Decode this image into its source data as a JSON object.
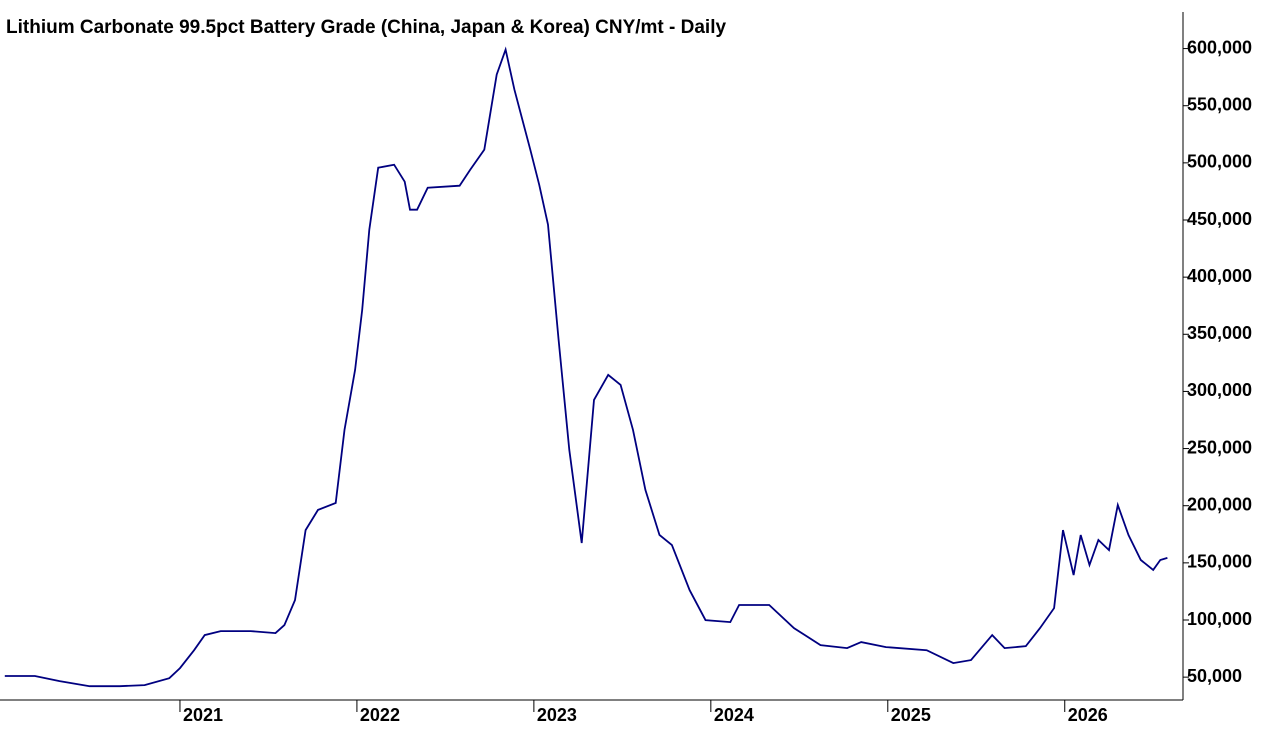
{
  "chart_data": {
    "type": "line",
    "title": "Lithium Carbonate 99.5pct Battery Grade (China, Japan & Korea) CNY/mt - Daily",
    "x": [
      2020.01,
      2020.18,
      2020.32,
      2020.49,
      2020.66,
      2020.8,
      2020.94,
      2021.0,
      2021.08,
      2021.14,
      2021.23,
      2021.4,
      2021.54,
      2021.59,
      2021.65,
      2021.71,
      2021.78,
      2021.88,
      2021.93,
      2021.99,
      2022.03,
      2022.07,
      2022.12,
      2022.21,
      2022.27,
      2022.3,
      2022.34,
      2022.4,
      2022.58,
      2022.64,
      2022.72,
      2022.79,
      2022.84,
      2022.89,
      2022.98,
      2023.03,
      2023.08,
      2023.14,
      2023.2,
      2023.27,
      2023.34,
      2023.42,
      2023.49,
      2023.56,
      2023.63,
      2023.71,
      2023.78,
      2023.88,
      2023.97,
      2024.11,
      2024.16,
      2024.33,
      2024.47,
      2024.62,
      2024.77,
      2024.85,
      2024.99,
      2025.22,
      2025.37,
      2025.47,
      2025.59,
      2025.66,
      2025.78,
      2025.86,
      2025.94,
      2025.99,
      2026.05,
      2026.09,
      2026.14,
      2026.19,
      2026.25,
      2026.3,
      2026.36,
      2026.43,
      2026.5,
      2026.54,
      2026.58
    ],
    "series": [
      {
        "color": "#000080",
        "values": [
          51000,
          51000,
          46500,
          42100,
          42100,
          43000,
          49100,
          57900,
          73600,
          86800,
          90300,
          90300,
          88500,
          95500,
          117400,
          178700,
          196300,
          202400,
          266300,
          318900,
          371400,
          441500,
          495800,
          498400,
          483500,
          459000,
          459000,
          478300,
          480000,
          494000,
          511500,
          577200,
          599100,
          564100,
          511500,
          480900,
          445900,
          345200,
          248800,
          167400,
          292600,
          314500,
          305700,
          266300,
          213800,
          174400,
          165600,
          126200,
          99900,
          98200,
          113100,
          113100,
          92900,
          78000,
          75400,
          80700,
          76300,
          73600,
          62300,
          64900,
          86800,
          75400,
          77100,
          92900,
          110400,
          178700,
          139300,
          174400,
          148100,
          170000,
          161200,
          200600,
          174400,
          152500,
          143800,
          152500,
          154300
        ]
      }
    ],
    "xlim": [
      2020,
      2026.64
    ],
    "xticks": [
      2021,
      2022,
      2023,
      2024,
      2025,
      2026
    ],
    "ylim": [
      30000,
      632000
    ],
    "yticks": [
      {
        "value": 50000,
        "label": "50,000"
      },
      {
        "value": 100000,
        "label": "100,000"
      },
      {
        "value": 150000,
        "label": "150,000"
      },
      {
        "value": 200000,
        "label": "200,000"
      },
      {
        "value": 250000,
        "label": "250,000"
      },
      {
        "value": 300000,
        "label": "300,000"
      },
      {
        "value": 350000,
        "label": "350,000"
      },
      {
        "value": 400000,
        "label": "400,000"
      },
      {
        "value": 450000,
        "label": "450,000"
      },
      {
        "value": 500000,
        "label": "500,000"
      },
      {
        "value": 550000,
        "label": "550,000"
      },
      {
        "value": 600000,
        "label": "600,000"
      }
    ],
    "grid": false
  }
}
